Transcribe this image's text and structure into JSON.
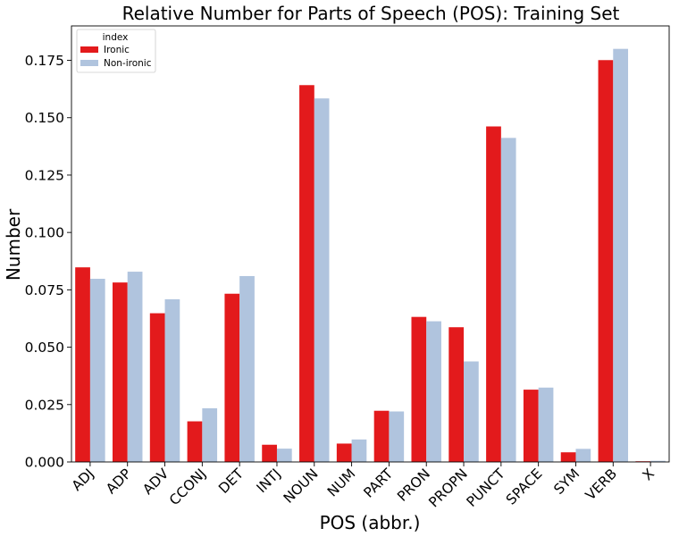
{
  "chart_data": {
    "type": "bar",
    "title": "Relative Number for Parts of Speech (POS): Training Set",
    "xlabel": "POS (abbr.)",
    "ylabel": "Number",
    "ylim": [
      0,
      0.19
    ],
    "yticks": [
      "0.000",
      "0.025",
      "0.050",
      "0.075",
      "0.100",
      "0.125",
      "0.150",
      "0.175"
    ],
    "grid": false,
    "legend": {
      "title": "index",
      "placement": "top-left"
    },
    "categories": [
      "ADJ",
      "ADP",
      "ADV",
      "CCONJ",
      "DET",
      "INTJ",
      "NOUN",
      "NUM",
      "PART",
      "PRON",
      "PROPN",
      "PUNCT",
      "SPACE",
      "SYM",
      "VERB",
      "X"
    ],
    "series": [
      {
        "name": "Ironic",
        "color": "#e31a1c",
        "values": [
          0.0848,
          0.0782,
          0.0648,
          0.0177,
          0.0733,
          0.0075,
          0.1642,
          0.008,
          0.0223,
          0.0632,
          0.0587,
          0.1462,
          0.0315,
          0.0042,
          0.1751,
          0.0003
        ]
      },
      {
        "name": "Non-ironic",
        "color": "#b0c4de",
        "values": [
          0.0798,
          0.0829,
          0.0709,
          0.0234,
          0.081,
          0.0058,
          0.1584,
          0.0098,
          0.022,
          0.0613,
          0.0438,
          0.1412,
          0.0324,
          0.0057,
          0.18,
          0.0005
        ]
      }
    ]
  }
}
